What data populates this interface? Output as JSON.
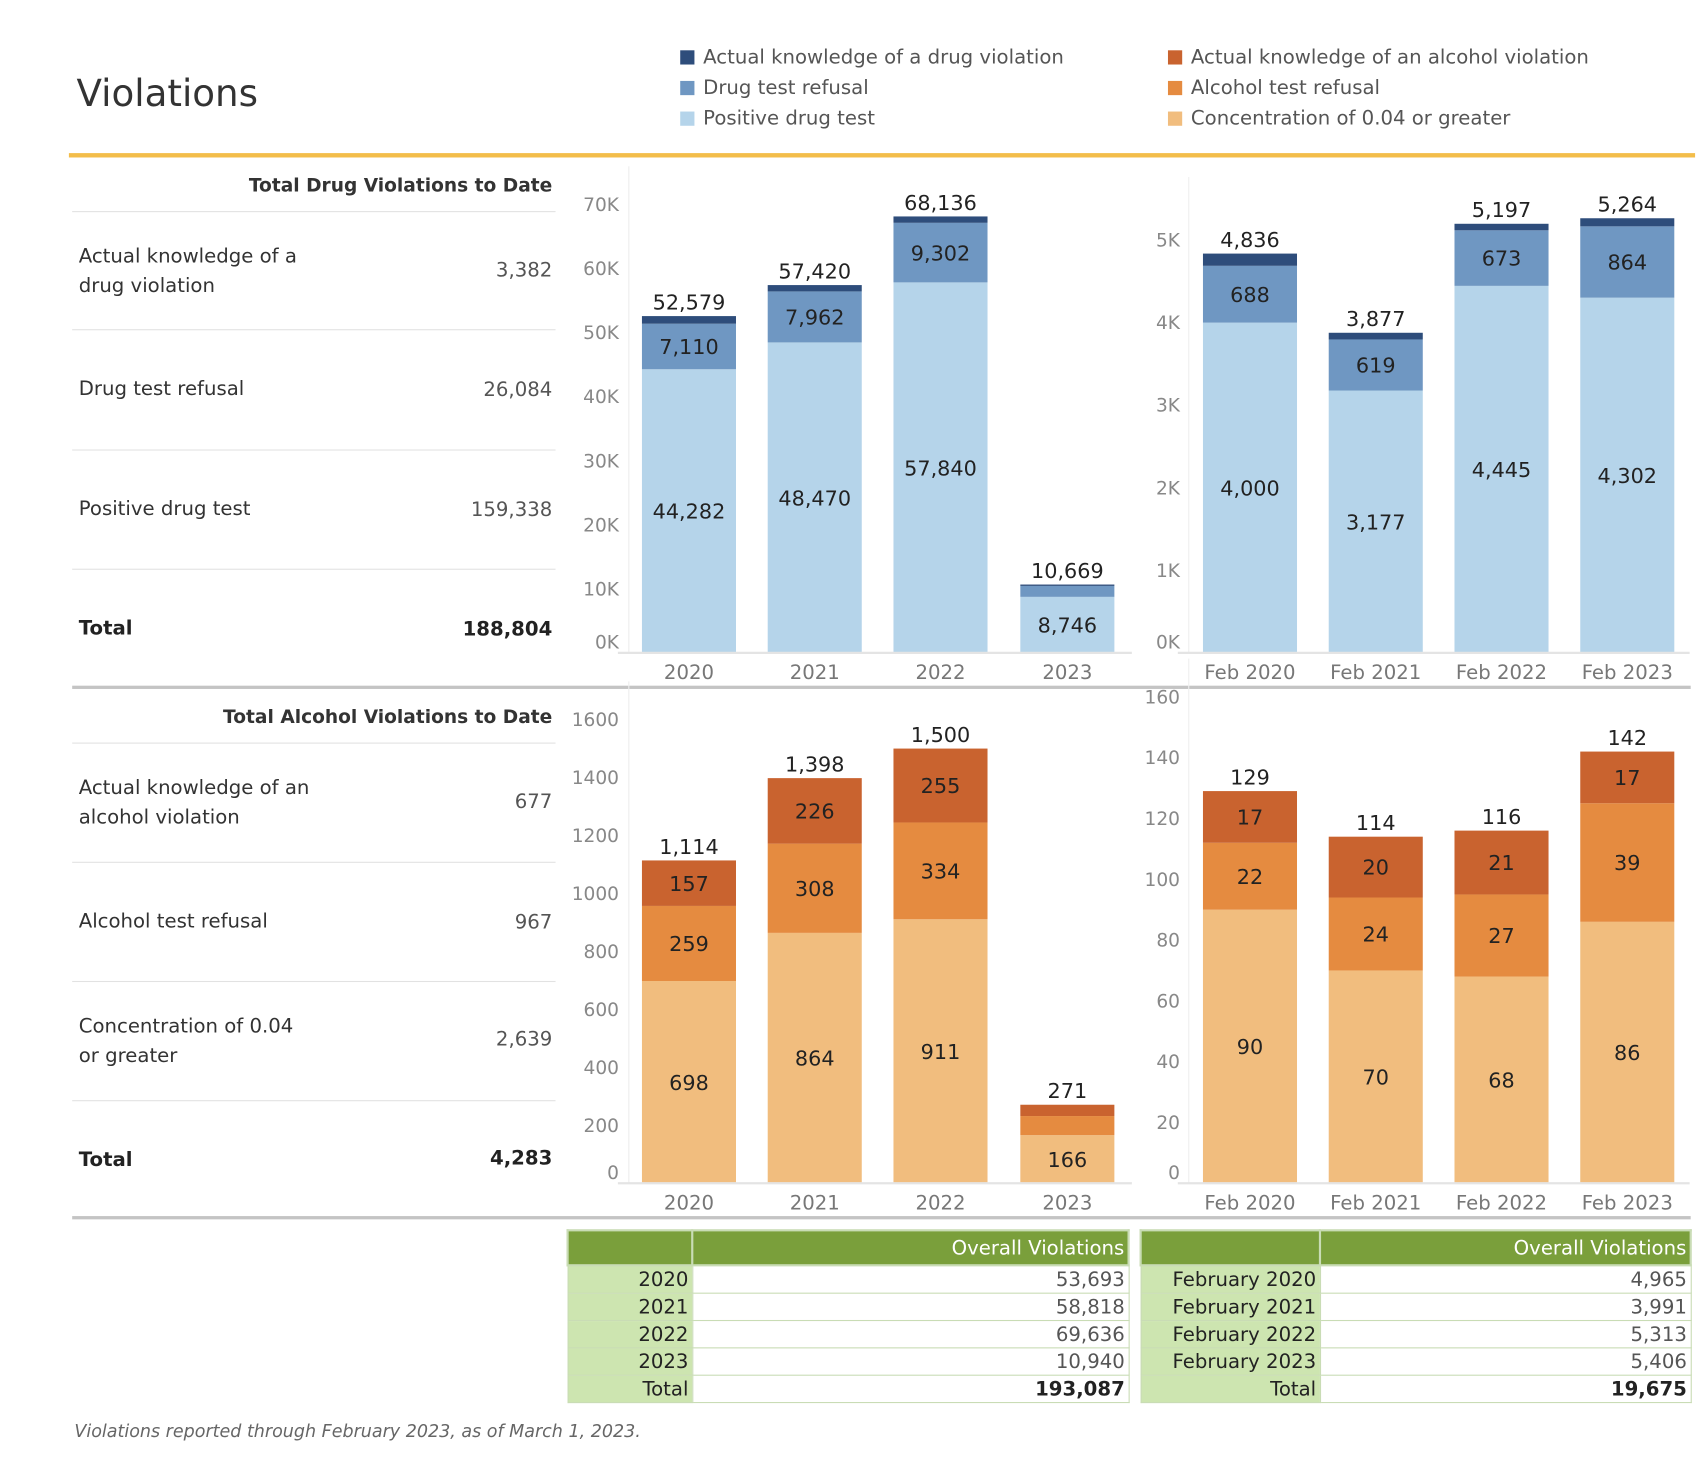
{
  "title": "Violations",
  "legend": [
    {
      "label": "Actual knowledge of a drug violation",
      "color": "#2e4d7b"
    },
    {
      "label": "Drug test refusal",
      "color": "#6f97c2"
    },
    {
      "label": "Positive drug test",
      "color": "#b5d4ea"
    },
    {
      "label": "Actual knowledge of an alcohol violation",
      "color": "#c9632f"
    },
    {
      "label": "Alcohol test refusal",
      "color": "#e58b40"
    },
    {
      "label": "Concentration of 0.04 or greater",
      "color": "#f1bd7e"
    }
  ],
  "drug_summary": {
    "header": "Total Drug Violations to Date",
    "rows": [
      {
        "label": "Actual knowledge of a drug violation",
        "value": "3,382"
      },
      {
        "label": "Drug test refusal",
        "value": "26,084"
      },
      {
        "label": "Positive drug test",
        "value": "159,338"
      },
      {
        "label": "Total",
        "value": "188,804"
      }
    ]
  },
  "alcohol_summary": {
    "header": "Total Alcohol Violations to Date",
    "rows": [
      {
        "label": "Actual knowledge of an alcohol violation",
        "value": "677"
      },
      {
        "label": "Alcohol test refusal",
        "value": "967"
      },
      {
        "label": "Concentration of 0.04 or greater",
        "value": "2,639"
      },
      {
        "label": "Total",
        "value": "4,283"
      }
    ]
  },
  "chart_data": [
    {
      "type": "bar",
      "stacked": true,
      "categories": [
        "2020",
        "2021",
        "2022",
        "2023"
      ],
      "yticks": [
        "0K",
        "10K",
        "20K",
        "30K",
        "40K",
        "50K",
        "60K",
        "70K"
      ],
      "ylim": [
        0,
        70000
      ],
      "series": [
        {
          "name": "Positive drug test",
          "color": "#b5d4ea",
          "values": [
            44282,
            48470,
            57840,
            8746
          ]
        },
        {
          "name": "Drug test refusal",
          "color": "#6f97c2",
          "values": [
            7110,
            7962,
            9302,
            1710
          ]
        },
        {
          "name": "Actual knowledge of a drug violation",
          "color": "#2e4d7b",
          "values": [
            1187,
            988,
            994,
            213
          ]
        }
      ],
      "totals": [
        52579,
        57420,
        68136,
        10669
      ]
    },
    {
      "type": "bar",
      "stacked": true,
      "categories": [
        "Feb 2020",
        "Feb 2021",
        "Feb 2022",
        "Feb 2023"
      ],
      "yticks": [
        "0K",
        "1K",
        "2K",
        "3K",
        "4K",
        "5K"
      ],
      "ylim": [
        0,
        5300
      ],
      "series": [
        {
          "name": "Positive drug test",
          "color": "#b5d4ea",
          "values": [
            4000,
            3177,
            4445,
            4302
          ]
        },
        {
          "name": "Drug test refusal",
          "color": "#6f97c2",
          "values": [
            688,
            619,
            673,
            864
          ]
        },
        {
          "name": "Actual knowledge of a drug violation",
          "color": "#2e4d7b",
          "values": [
            148,
            81,
            79,
            98
          ]
        }
      ],
      "totals": [
        4836,
        3877,
        5197,
        5264
      ]
    },
    {
      "type": "bar",
      "stacked": true,
      "categories": [
        "2020",
        "2021",
        "2022",
        "2023"
      ],
      "yticks": [
        "0",
        "200",
        "400",
        "600",
        "800",
        "1000",
        "1200",
        "1400",
        "1600"
      ],
      "ylim": [
        0,
        1600
      ],
      "series": [
        {
          "name": "Concentration of 0.04 or greater",
          "color": "#f1bd7e",
          "values": [
            698,
            864,
            911,
            166
          ]
        },
        {
          "name": "Alcohol test refusal",
          "color": "#e58b40",
          "values": [
            259,
            308,
            334,
            66
          ]
        },
        {
          "name": "Actual knowledge of an alcohol violation",
          "color": "#c9632f",
          "values": [
            157,
            226,
            255,
            39
          ]
        }
      ],
      "totals": [
        1114,
        1398,
        1500,
        271
      ]
    },
    {
      "type": "bar",
      "stacked": true,
      "categories": [
        "Feb 2020",
        "Feb 2021",
        "Feb 2022",
        "Feb 2023"
      ],
      "yticks": [
        "0",
        "20",
        "40",
        "60",
        "80",
        "100",
        "120",
        "140",
        "160"
      ],
      "ylim": [
        0,
        160
      ],
      "series": [
        {
          "name": "Concentration of 0.04 or greater",
          "color": "#f1bd7e",
          "values": [
            90,
            70,
            68,
            86
          ]
        },
        {
          "name": "Alcohol test refusal",
          "color": "#e58b40",
          "values": [
            22,
            24,
            27,
            39
          ]
        },
        {
          "name": "Actual knowledge of an alcohol violation",
          "color": "#c9632f",
          "values": [
            17,
            20,
            21,
            17
          ]
        }
      ],
      "totals": [
        129,
        114,
        116,
        142
      ]
    }
  ],
  "year_table": {
    "header": "Overall Violations",
    "rows": [
      [
        "2020",
        "53,693"
      ],
      [
        "2021",
        "58,818"
      ],
      [
        "2022",
        "69,636"
      ],
      [
        "2023",
        "10,940"
      ],
      [
        "Total",
        "193,087"
      ]
    ]
  },
  "feb_table": {
    "header": "Overall Violations",
    "rows": [
      [
        "February 2020",
        "4,965"
      ],
      [
        "February 2021",
        "3,991"
      ],
      [
        "February 2022",
        "5,313"
      ],
      [
        "February 2023",
        "5,406"
      ],
      [
        "Total",
        "19,675"
      ]
    ]
  },
  "footnote": "Violations reported through February 2023, as of March 1, 2023."
}
